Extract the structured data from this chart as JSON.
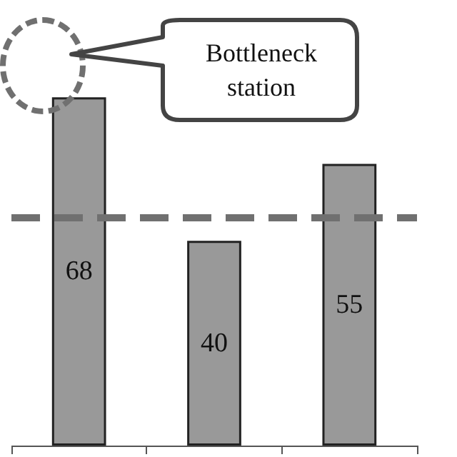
{
  "chart_data": {
    "type": "bar",
    "categories": [
      null,
      null,
      null
    ],
    "values": [
      68,
      40,
      55
    ],
    "color": "#999999",
    "data_labels": true,
    "ref_lines": [
      {
        "axis": "y",
        "value": 44.5,
        "color": "#707070",
        "line_style": "dashed"
      }
    ],
    "annotations": [
      "Bottleneck station"
    ]
  }
}
